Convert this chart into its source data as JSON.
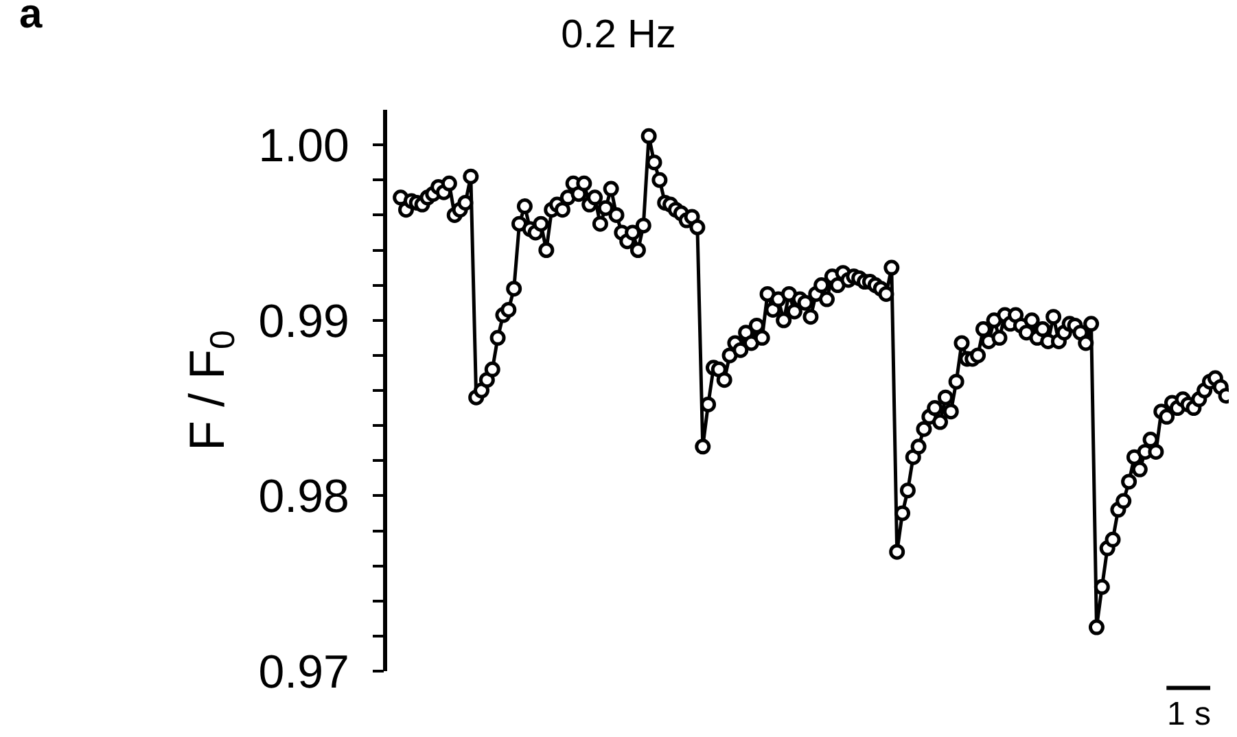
{
  "chart_data": {
    "type": "line",
    "title": "0.2 Hz",
    "ylabel": "F / F$_{0}$",
    "annotations": [
      "a",
      "1 s"
    ],
    "categories": [
      null,
      null,
      null,
      null,
      null,
      null,
      null,
      null,
      null,
      null,
      null,
      null,
      null,
      null,
      null,
      null,
      null,
      null,
      null,
      null,
      null,
      null,
      null,
      null,
      null,
      null,
      null,
      null,
      null,
      null,
      null,
      null,
      null,
      null,
      null,
      null,
      null,
      null,
      null,
      null,
      null,
      null,
      null,
      null,
      null,
      null,
      null,
      null,
      null,
      null,
      null,
      null,
      null,
      null,
      null,
      null,
      null,
      null,
      null,
      null,
      null,
      null,
      null,
      null,
      null,
      null,
      null,
      null,
      null,
      null,
      null,
      null,
      null,
      null,
      null,
      null,
      null,
      null,
      null,
      null,
      null,
      null,
      null,
      null,
      null,
      null,
      null,
      null,
      null,
      null,
      null,
      null,
      null,
      null,
      null,
      null,
      null,
      null,
      null,
      null,
      null,
      null,
      null,
      null,
      null,
      null,
      null,
      null,
      null,
      null,
      null,
      null,
      null,
      null,
      null,
      null,
      null,
      null,
      null,
      null,
      null,
      null,
      null,
      null,
      null,
      null,
      null,
      null,
      null,
      null,
      null,
      null,
      null,
      null,
      null,
      null,
      null,
      null,
      null,
      null,
      null,
      null,
      null,
      null,
      null,
      null,
      null,
      null,
      null,
      null,
      null,
      null,
      null,
      null
    ],
    "series": [
      {
        "color": "#000000",
        "values": [
          0.997,
          0.9963,
          0.9968,
          0.9967,
          0.9966,
          0.997,
          0.9972,
          0.9976,
          0.9973,
          0.9978,
          0.996,
          0.9963,
          0.9967,
          0.9982,
          0.9856,
          0.986,
          0.9866,
          0.9872,
          0.989,
          0.9903,
          0.9906,
          0.9918,
          0.9955,
          0.9965,
          0.9952,
          0.995,
          0.9955,
          0.994,
          0.9963,
          0.9966,
          0.9963,
          0.997,
          0.9978,
          0.9972,
          0.9978,
          0.9966,
          0.997,
          0.9955,
          0.9964,
          0.9975,
          0.996,
          0.995,
          0.9945,
          0.995,
          0.994,
          0.9954,
          1.0005,
          0.999,
          0.998,
          0.9967,
          0.9966,
          0.9963,
          0.9961,
          0.9957,
          0.9959,
          0.9953,
          0.9828,
          0.9852,
          0.9873,
          0.9872,
          0.9866,
          0.988,
          0.9887,
          0.9883,
          0.9893,
          0.9887,
          0.9897,
          0.989,
          0.9915,
          0.9906,
          0.9912,
          0.99,
          0.9915,
          0.9905,
          0.9912,
          0.991,
          0.9902,
          0.9915,
          0.992,
          0.9912,
          0.9925,
          0.992,
          0.9927,
          0.9923,
          0.9925,
          0.9924,
          0.9922,
          0.9922,
          0.992,
          0.9918,
          0.9915,
          0.993,
          0.9768,
          0.979,
          0.9803,
          0.9822,
          0.9828,
          0.9838,
          0.9845,
          0.985,
          0.9842,
          0.9856,
          0.9848,
          0.9865,
          0.9887,
          0.9878,
          0.9878,
          0.988,
          0.9895,
          0.9888,
          0.99,
          0.989,
          0.9903,
          0.9898,
          0.9903,
          0.9897,
          0.9893,
          0.99,
          0.989,
          0.9895,
          0.9888,
          0.9902,
          0.9888,
          0.9893,
          0.9898,
          0.9897,
          0.9893,
          0.9887,
          0.9898,
          0.9725,
          0.9748,
          0.977,
          0.9775,
          0.9792,
          0.9797,
          0.9808,
          0.9822,
          0.9815,
          0.9825,
          0.9832,
          0.9825,
          0.9848,
          0.9845,
          0.9853,
          0.985,
          0.9855,
          0.9852,
          0.985,
          0.9855,
          0.986,
          0.9865,
          0.9867,
          0.9862,
          0.9857
        ]
      }
    ],
    "ylim": [
      0.97,
      1.002
    ],
    "yticks": [
      0.97,
      {
        "value": 0.972,
        "label": null
      },
      {
        "value": 0.974,
        "label": null
      },
      {
        "value": 0.976,
        "label": null
      },
      {
        "value": 0.978,
        "label": null
      },
      0.98,
      {
        "value": 0.982,
        "label": null
      },
      {
        "value": 0.984,
        "label": null
      },
      {
        "value": 0.986,
        "label": null
      },
      {
        "value": 0.988,
        "label": null
      },
      0.99,
      {
        "value": 0.992,
        "label": null
      },
      {
        "value": 0.994,
        "label": null
      },
      {
        "value": 0.996,
        "label": null
      },
      {
        "value": 0.998,
        "label": null
      },
      {
        "value": 1,
        "label": "1.00"
      }
    ],
    "tick_labels": "y",
    "marker": "circle",
    "line_style": "solid"
  }
}
